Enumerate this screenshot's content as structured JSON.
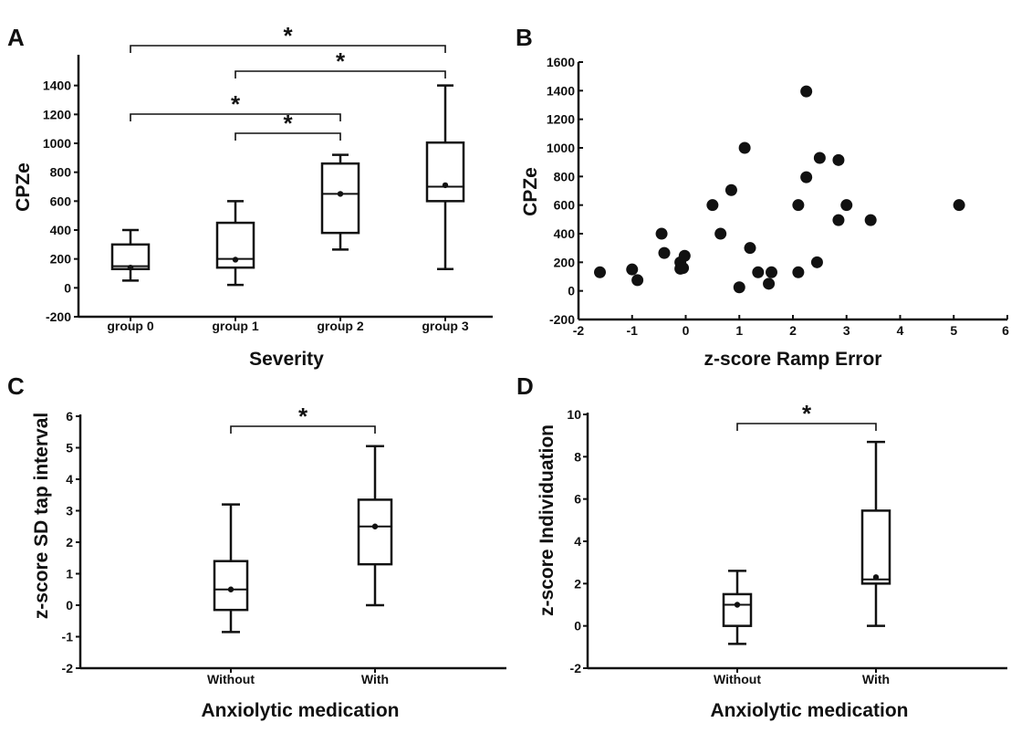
{
  "chart_data": [
    {
      "panel": "A",
      "type": "box",
      "xlabel": "Severity",
      "ylabel": "CPZe",
      "ylim": [
        -200,
        1600
      ],
      "yticks": [
        -200,
        0,
        200,
        400,
        600,
        800,
        1000,
        1200,
        1400
      ],
      "categories": [
        "group 0",
        "group 1",
        "group 2",
        "group 3"
      ],
      "boxes": [
        {
          "min": 50,
          "q1": 130,
          "median": 150,
          "mean": 140,
          "q3": 300,
          "max": 400
        },
        {
          "min": 20,
          "q1": 140,
          "median": 200,
          "mean": 195,
          "q3": 450,
          "max": 600
        },
        {
          "min": 265,
          "q1": 380,
          "median": 650,
          "mean": 650,
          "q3": 860,
          "max": 920
        },
        {
          "min": 130,
          "q1": 600,
          "median": 700,
          "mean": 710,
          "q3": 1005,
          "max": 1400
        }
      ],
      "significance": [
        {
          "from": 0,
          "to": 3,
          "label": "*"
        },
        {
          "from": 1,
          "to": 3,
          "label": "*"
        },
        {
          "from": 0,
          "to": 2,
          "label": "*"
        },
        {
          "from": 1,
          "to": 2,
          "label": "*"
        }
      ]
    },
    {
      "panel": "B",
      "type": "scatter",
      "xlabel": "z-score Ramp Error",
      "ylabel": "CPZe",
      "xlim": [
        -2,
        6
      ],
      "ylim": [
        -200,
        1600
      ],
      "xticks": [
        -2,
        -1,
        0,
        1,
        2,
        3,
        4,
        5,
        6
      ],
      "yticks": [
        -200,
        0,
        200,
        400,
        600,
        800,
        1000,
        1200,
        1400,
        1600
      ],
      "points": [
        {
          "x": -1.6,
          "y": 130
        },
        {
          "x": -1.0,
          "y": 150
        },
        {
          "x": -0.9,
          "y": 75
        },
        {
          "x": -0.45,
          "y": 400
        },
        {
          "x": -0.4,
          "y": 265
        },
        {
          "x": -0.1,
          "y": 200
        },
        {
          "x": -0.1,
          "y": 155
        },
        {
          "x": -0.05,
          "y": 160
        },
        {
          "x": -0.02,
          "y": 245
        },
        {
          "x": 0.5,
          "y": 600
        },
        {
          "x": 0.65,
          "y": 400
        },
        {
          "x": 0.85,
          "y": 705
        },
        {
          "x": 1.0,
          "y": 25
        },
        {
          "x": 1.1,
          "y": 1000
        },
        {
          "x": 1.2,
          "y": 300
        },
        {
          "x": 1.35,
          "y": 130
        },
        {
          "x": 1.55,
          "y": 50
        },
        {
          "x": 1.6,
          "y": 130
        },
        {
          "x": 2.1,
          "y": 600
        },
        {
          "x": 2.1,
          "y": 130
        },
        {
          "x": 2.25,
          "y": 1395
        },
        {
          "x": 2.25,
          "y": 795
        },
        {
          "x": 2.45,
          "y": 200
        },
        {
          "x": 2.5,
          "y": 930
        },
        {
          "x": 2.85,
          "y": 915
        },
        {
          "x": 2.85,
          "y": 495
        },
        {
          "x": 3.0,
          "y": 600
        },
        {
          "x": 3.45,
          "y": 495
        },
        {
          "x": 5.1,
          "y": 600
        }
      ]
    },
    {
      "panel": "C",
      "type": "box",
      "xlabel": "Anxiolytic medication",
      "ylabel": "z-score SD tap interval",
      "ylim": [
        -2,
        6
      ],
      "yticks": [
        -2,
        -1,
        0,
        1,
        2,
        3,
        4,
        5,
        6
      ],
      "categories": [
        "Without",
        "With"
      ],
      "boxes": [
        {
          "min": -0.85,
          "q1": -0.15,
          "median": 0.5,
          "mean": 0.5,
          "q3": 1.4,
          "max": 3.2
        },
        {
          "min": 0.0,
          "q1": 1.3,
          "median": 2.5,
          "mean": 2.5,
          "q3": 3.35,
          "max": 5.05
        }
      ],
      "significance": [
        {
          "from": 0,
          "to": 1,
          "label": "*"
        }
      ]
    },
    {
      "panel": "D",
      "type": "box",
      "xlabel": "Anxiolytic medication",
      "ylabel": "z-score Individuation",
      "ylim": [
        -2,
        10
      ],
      "yticks": [
        -2,
        0,
        2,
        4,
        6,
        8,
        10
      ],
      "categories": [
        "Without",
        "With"
      ],
      "boxes": [
        {
          "min": -0.85,
          "q1": 0.0,
          "median": 1.0,
          "mean": 1.0,
          "q3": 1.5,
          "max": 2.6
        },
        {
          "min": 0.0,
          "q1": 2.0,
          "median": 2.2,
          "mean": 2.3,
          "q3": 5.45,
          "max": 8.7
        }
      ],
      "significance": [
        {
          "from": 0,
          "to": 1,
          "label": "*"
        }
      ]
    }
  ]
}
